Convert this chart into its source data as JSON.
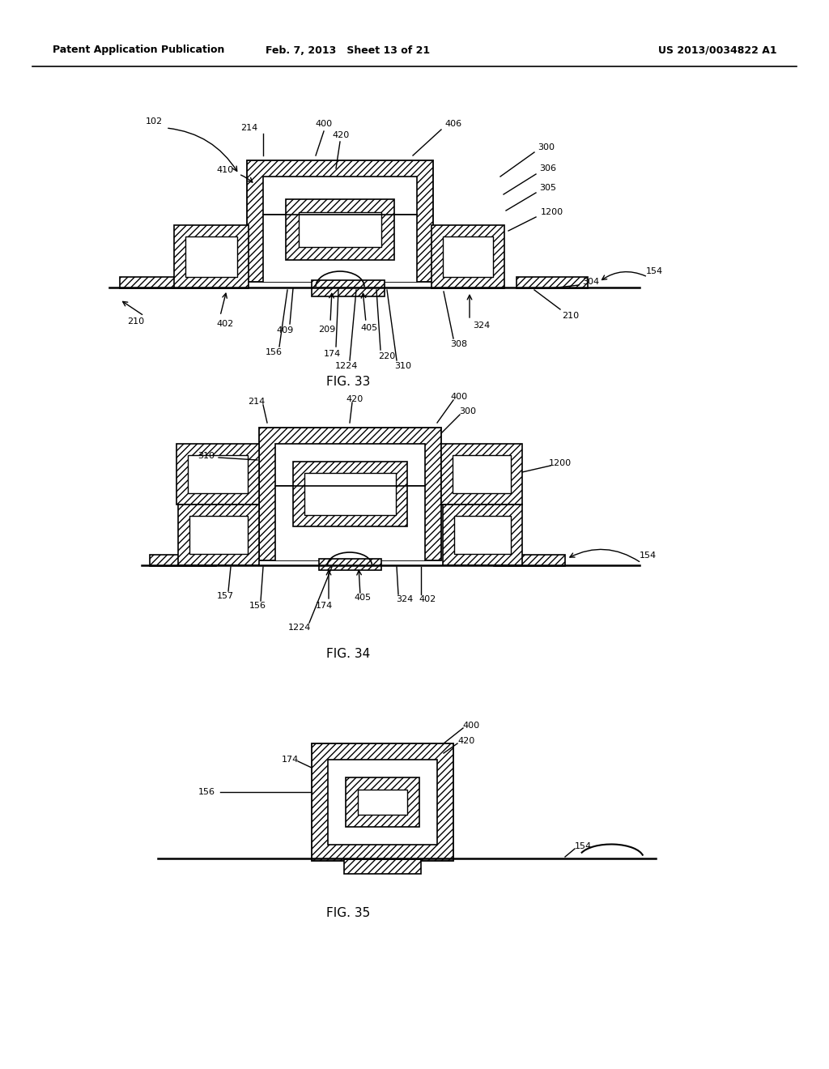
{
  "header_left": "Patent Application Publication",
  "header_mid": "Feb. 7, 2013   Sheet 13 of 21",
  "header_right": "US 2013/0034822 A1",
  "fig33_caption": "FIG. 33",
  "fig34_caption": "FIG. 34",
  "fig35_caption": "FIG. 35",
  "background": "#ffffff",
  "hatch_pattern": "////",
  "line_color": "#000000"
}
